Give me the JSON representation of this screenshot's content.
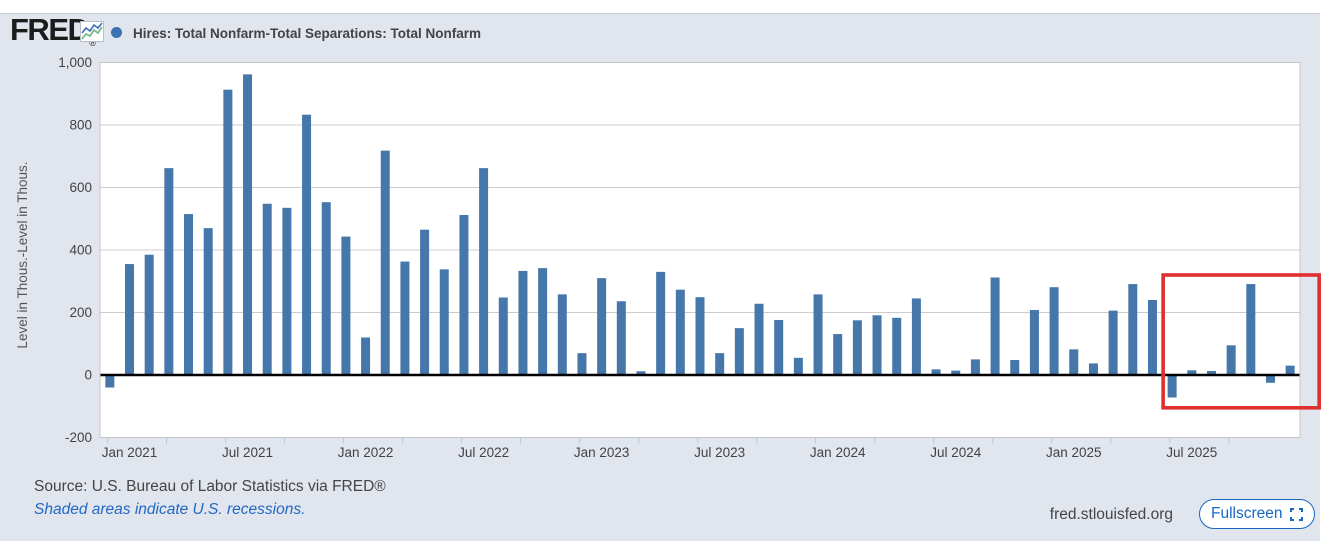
{
  "header": {
    "logo_text": "FRED",
    "logo_registered": "®",
    "series_title": "Hires: Total Nonfarm-Total Separations: Total Nonfarm"
  },
  "chart_data": {
    "type": "bar",
    "title": "Hires: Total Nonfarm-Total Separations: Total Nonfarm",
    "xlabel": "",
    "ylabel": "Level in Thous.-Level in Thous.",
    "ylim": [
      -200,
      1000
    ],
    "grid": true,
    "legend_position": "top-left",
    "legend_marker": "circle",
    "bar_color": "#4677aa",
    "legend_color": "#3d72b0",
    "zero_line_color": "#000000",
    "ytick_values": [
      1000,
      800,
      600,
      400,
      200,
      0,
      -200
    ],
    "ytick_labels": [
      "1,000",
      "800",
      "600",
      "400",
      "200",
      "0",
      "-200"
    ],
    "x_axis_labels": [
      "Jan 2021",
      "Jul 2021",
      "Jan 2022",
      "Jul 2022",
      "Jan 2023",
      "Jul 2023",
      "Jan 2024",
      "Jul 2024",
      "Jan 2025",
      "Jul 2025"
    ],
    "categories": [
      "Dec 2020",
      "Jan 2021",
      "Feb 2021",
      "Mar 2021",
      "Apr 2021",
      "May 2021",
      "Jun 2021",
      "Jul 2021",
      "Aug 2021",
      "Sep 2021",
      "Oct 2021",
      "Nov 2021",
      "Dec 2021",
      "Jan 2022",
      "Feb 2022",
      "Mar 2022",
      "Apr 2022",
      "May 2022",
      "Jun 2022",
      "Jul 2022",
      "Aug 2022",
      "Sep 2022",
      "Oct 2022",
      "Nov 2022",
      "Dec 2022",
      "Jan 2023",
      "Feb 2023",
      "Mar 2023",
      "Apr 2023",
      "May 2023",
      "Jun 2023",
      "Jul 2023",
      "Aug 2023",
      "Sep 2023",
      "Oct 2023",
      "Nov 2023",
      "Dec 2023",
      "Jan 2024",
      "Feb 2024",
      "Mar 2024",
      "Apr 2024",
      "May 2024",
      "Jun 2024",
      "Jul 2024",
      "Aug 2024",
      "Sep 2024",
      "Oct 2024",
      "Nov 2024",
      "Dec 2024",
      "Jan 2025",
      "Feb 2025",
      "Mar 2025",
      "Apr 2025",
      "May 2025",
      "Jun 2025",
      "Jul 2025",
      "Aug 2025",
      "Sep 2025",
      "Oct 2025",
      "Nov 2025",
      "Dec 2025"
    ],
    "values": [
      -40,
      355,
      385,
      662,
      515,
      470,
      913,
      962,
      548,
      535,
      833,
      553,
      443,
      120,
      718,
      363,
      465,
      338,
      512,
      662,
      248,
      333,
      342,
      258,
      70,
      310,
      236,
      12,
      330,
      273,
      249,
      70,
      150,
      228,
      176,
      55,
      258,
      131,
      175,
      191,
      183,
      245,
      18,
      14,
      50,
      312,
      48,
      208,
      281,
      82,
      37,
      206,
      291,
      240,
      -72,
      15,
      13,
      95,
      291,
      -25,
      30
    ],
    "highlight_box": {
      "start_category": "Jun 2025",
      "end_category": "Dec 2025",
      "start_index": 54,
      "end_index": 60,
      "value_top": 320,
      "value_bottom": -105,
      "color": "#e02f2f"
    }
  },
  "footer": {
    "source": "Source: U.S. Bureau of Labor Statistics via FRED®",
    "recession_note": "Shaded areas indicate U.S. recessions.",
    "site": "fred.stlouisfed.org",
    "fullscreen_label": "Fullscreen"
  }
}
